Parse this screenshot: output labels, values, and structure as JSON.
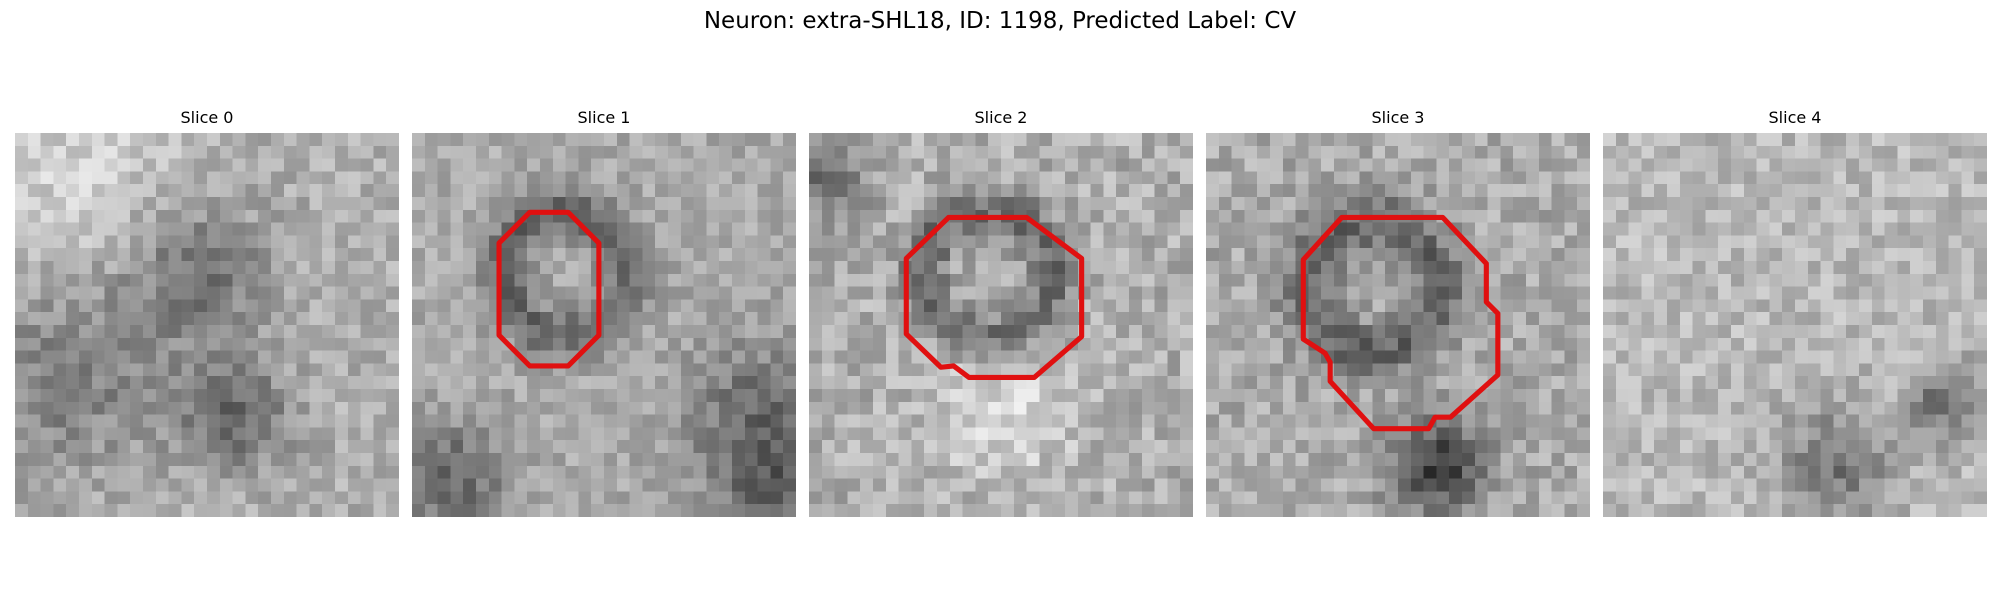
{
  "title": "Neuron: extra-SHL18, ID: 1198, Predicted Label: CV",
  "colormap": "gray",
  "contour_color": "#e01010",
  "slices": [
    {
      "label": "Slice 0",
      "has_contour": false
    },
    {
      "label": "Slice 1",
      "has_contour": true
    },
    {
      "label": "Slice 2",
      "has_contour": true
    },
    {
      "label": "Slice 3",
      "has_contour": true
    },
    {
      "label": "Slice 4",
      "has_contour": false
    }
  ]
}
